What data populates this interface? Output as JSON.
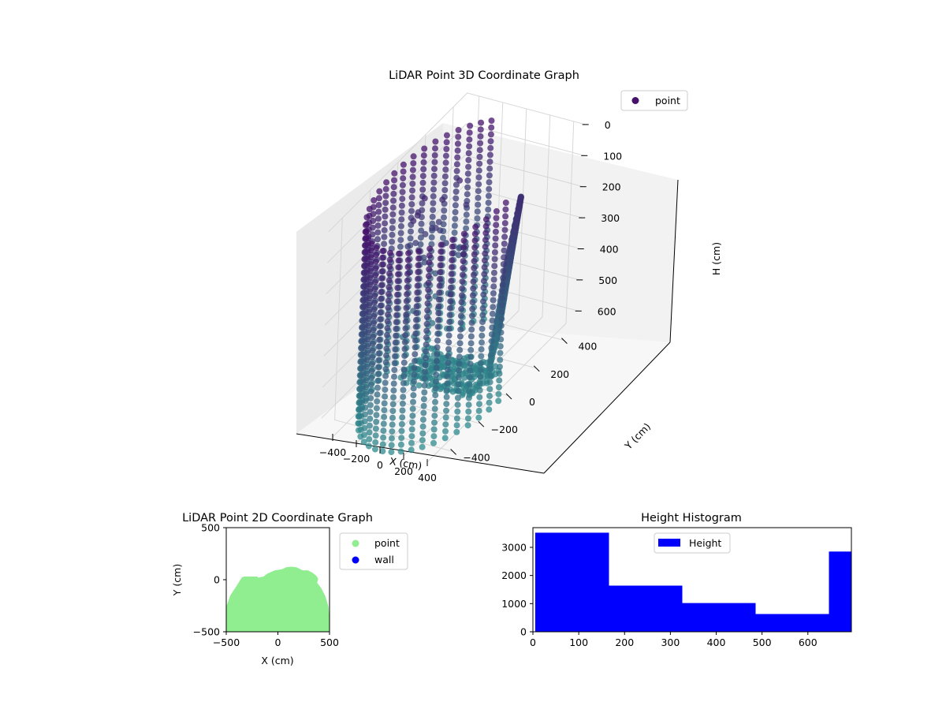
{
  "chart_data": [
    {
      "type": "scatter",
      "subtype": "3d",
      "title": "LiDAR Point 3D Coordinate Graph",
      "xlabel": "X (cm)",
      "ylabel": "Y (cm)",
      "zlabel": "H (cm)",
      "x_ticks": [
        "−400",
        "−200",
        "0",
        "200",
        "400"
      ],
      "y_ticks": [
        "−400",
        "−200",
        "0",
        "200",
        "400"
      ],
      "z_ticks": [
        "0",
        "100",
        "200",
        "300",
        "400",
        "500",
        "600"
      ],
      "xlim": [
        -500,
        500
      ],
      "ylim": [
        -500,
        500
      ],
      "zlim": [
        0,
        650
      ],
      "z_inverted": true,
      "legend": [
        "point"
      ],
      "legend_position": "upper right",
      "colormap": "viridis (dark purple high, teal low)",
      "color_high": "#45116b",
      "color_low": "#2e8a8c",
      "description_series": [
        {
          "name": "cylindrical wall columns",
          "x_range": [
            -500,
            500
          ],
          "y_range": [
            -500,
            400
          ],
          "h_range": [
            0,
            650
          ]
        },
        {
          "name": "curved overhang sheet",
          "x_range": [
            0,
            300
          ],
          "y_range": [
            100,
            400
          ],
          "h_range": [
            0,
            500
          ]
        },
        {
          "name": "floor band",
          "x_range": [
            -300,
            300
          ],
          "y_range": [
            -100,
            100
          ],
          "h_range": [
            600,
            650
          ]
        }
      ]
    },
    {
      "type": "scatter",
      "title": "LiDAR Point 2D Coordinate Graph",
      "xlabel": "X (cm)",
      "ylabel": "Y (cm)",
      "x_ticks": [
        "−500",
        "0",
        "500"
      ],
      "y_ticks": [
        "−500",
        "0",
        "500"
      ],
      "xlim": [
        -500,
        500
      ],
      "ylim": [
        -500,
        500
      ],
      "legend": [
        "point",
        "wall"
      ],
      "legend_position": "outside right",
      "series": [
        {
          "name": "point",
          "color": "#90ee90",
          "outline": [
            [
              -500,
              -500
            ],
            [
              -500,
              -260
            ],
            [
              -460,
              -150
            ],
            [
              -400,
              -60
            ],
            [
              -350,
              20
            ],
            [
              -330,
              30
            ],
            [
              -200,
              30
            ],
            [
              -190,
              20
            ],
            [
              -140,
              30
            ],
            [
              -100,
              60
            ],
            [
              -30,
              90
            ],
            [
              40,
              100
            ],
            [
              80,
              120
            ],
            [
              130,
              125
            ],
            [
              180,
              120
            ],
            [
              240,
              90
            ],
            [
              290,
              90
            ],
            [
              330,
              70
            ],
            [
              370,
              40
            ],
            [
              390,
              10
            ],
            [
              380,
              -30
            ],
            [
              420,
              -80
            ],
            [
              460,
              -160
            ],
            [
              490,
              -260
            ],
            [
              500,
              -380
            ],
            [
              500,
              -500
            ]
          ]
        },
        {
          "name": "wall",
          "color": "#0000ff",
          "points": []
        }
      ]
    },
    {
      "type": "bar",
      "subtype": "histogram",
      "title": "Height Histogram",
      "x_ticks": [
        "0",
        "100",
        "200",
        "300",
        "400",
        "500",
        "600"
      ],
      "y_ticks": [
        "0",
        "1000",
        "2000",
        "3000"
      ],
      "xlim": [
        0,
        695
      ],
      "ylim": [
        0,
        3700
      ],
      "legend": [
        "Height"
      ],
      "legend_position": "upper center",
      "color": "#0000ff",
      "bins": [
        {
          "x0": 5,
          "x1": 166,
          "value": 3520
        },
        {
          "x0": 166,
          "x1": 326,
          "value": 1640
        },
        {
          "x0": 326,
          "x1": 486,
          "value": 1020
        },
        {
          "x0": 486,
          "x1": 646,
          "value": 630
        },
        {
          "x0": 646,
          "x1": 695,
          "value": 2850
        }
      ]
    }
  ]
}
